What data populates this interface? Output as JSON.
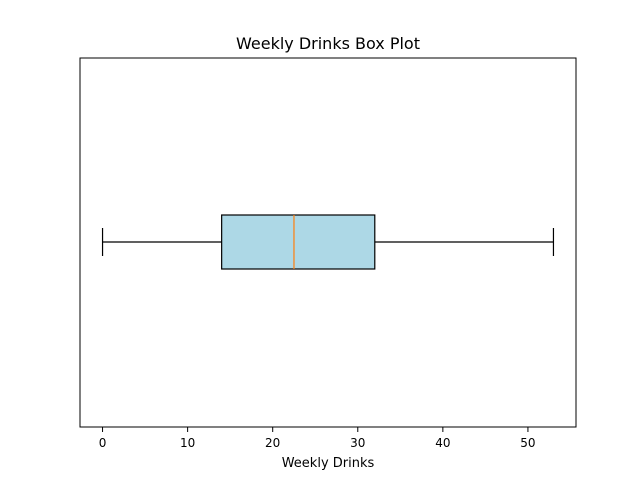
{
  "chart_data": {
    "type": "boxplot",
    "orientation": "horizontal",
    "title": "Weekly Drinks Box Plot",
    "xlabel": "Weekly Drinks",
    "ylabel": "",
    "xlim": [
      -2.65,
      55.65
    ],
    "xticks": [
      0,
      10,
      20,
      30,
      40,
      50
    ],
    "grid": false,
    "series": [
      {
        "whisker_low": 0,
        "q1": 14,
        "median": 22.5,
        "q3": 32,
        "whisker_high": 53
      }
    ],
    "colors": {
      "box_fill": "#add8e6",
      "box_edge": "#000000",
      "median_line": "#ff7f0e",
      "whisker": "#000000"
    }
  }
}
